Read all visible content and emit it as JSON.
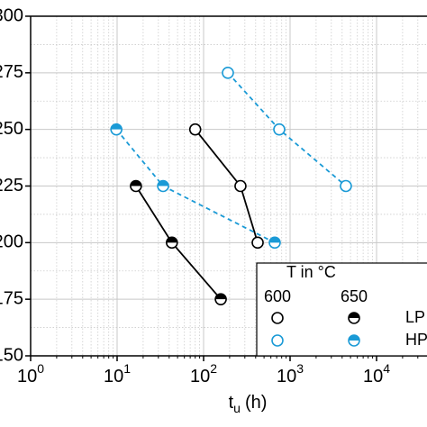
{
  "chart_data": {
    "type": "scatter",
    "xlabel": {
      "text": "t",
      "sub": "u",
      "unit": "(h)"
    },
    "xscale": "log",
    "xlim": [
      1,
      100000
    ],
    "ylim": [
      150,
      300
    ],
    "xticks": [
      {
        "value": 1,
        "label": "10",
        "power": "0"
      },
      {
        "value": 10,
        "label": "10",
        "power": "1"
      },
      {
        "value": 100,
        "label": "10",
        "power": "2"
      },
      {
        "value": 1000,
        "label": "10",
        "power": "3"
      },
      {
        "value": 10000,
        "label": "10",
        "power": "4"
      }
    ],
    "yticks": [
      150,
      175,
      200,
      225,
      250,
      275,
      300
    ],
    "grid": true,
    "minor_grid": true,
    "legend": {
      "title": "T in °C",
      "columns": [
        "600",
        "650"
      ],
      "rows": [
        "LP",
        "HP"
      ],
      "corner": "lower right"
    },
    "series": [
      {
        "name": "LP 600",
        "color": "#000000",
        "marker": "open",
        "line": "solid",
        "x": [
          80,
          267,
          422
        ],
        "values": [
          250,
          225,
          200
        ]
      },
      {
        "name": "LP 650",
        "color": "#000000",
        "marker": "half",
        "line": "solid",
        "x": [
          16.5,
          43,
          158
        ],
        "values": [
          225,
          200,
          175
        ]
      },
      {
        "name": "HP 600",
        "color": "#1a9ad6",
        "marker": "open",
        "line": "dashed",
        "x": [
          191,
          750,
          4420
        ],
        "values": [
          275,
          250,
          225
        ]
      },
      {
        "name": "HP 650",
        "color": "#1a9ad6",
        "marker": "half",
        "line": "dashed",
        "x": [
          9.8,
          34,
          665
        ],
        "values": [
          250,
          225,
          200
        ]
      }
    ]
  }
}
